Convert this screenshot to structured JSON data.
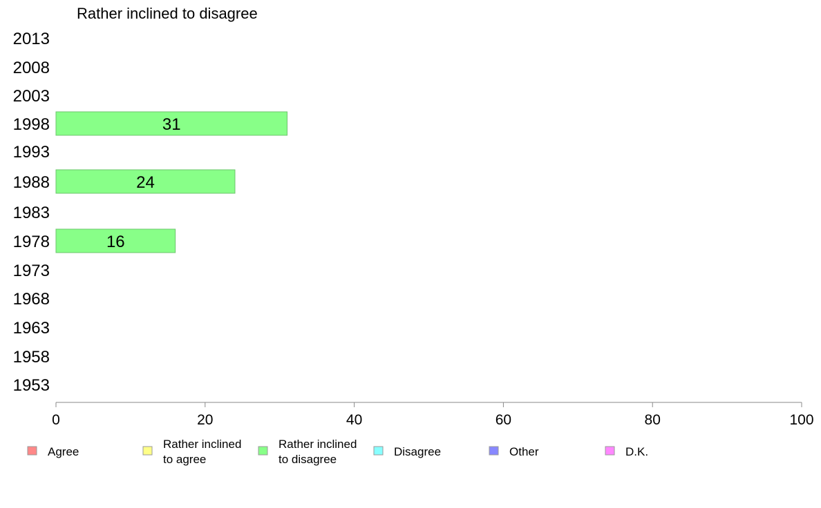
{
  "chart_data": {
    "type": "bar",
    "orientation": "horizontal",
    "title": "Rather inclined to disagree",
    "categories": [
      "2013",
      "2008",
      "2003",
      "1998",
      "1993",
      "1988",
      "1983",
      "1978",
      "1973",
      "1968",
      "1963",
      "1958",
      "1953"
    ],
    "series": [
      {
        "name": "Rather inclined to disagree",
        "color": "#88ff88",
        "points": [
          {
            "category": "1998",
            "value": 31
          },
          {
            "category": "1988",
            "value": 24
          },
          {
            "category": "1978",
            "value": 16
          }
        ]
      }
    ],
    "xlim": [
      0,
      100
    ],
    "xticks": [
      0,
      20,
      40,
      60,
      80,
      100
    ],
    "grid": false,
    "legend_position": "bottom",
    "legend": [
      {
        "label": "Agree",
        "color": "#ff8888"
      },
      {
        "label": "Rather inclined\nto agree",
        "color": "#ffff88"
      },
      {
        "label": "Rather inclined\nto disagree",
        "color": "#88ff88"
      },
      {
        "label": "Disagree",
        "color": "#88ffff"
      },
      {
        "label": "Other",
        "color": "#8888ff"
      },
      {
        "label": "D.K.",
        "color": "#ff88ff"
      }
    ]
  }
}
